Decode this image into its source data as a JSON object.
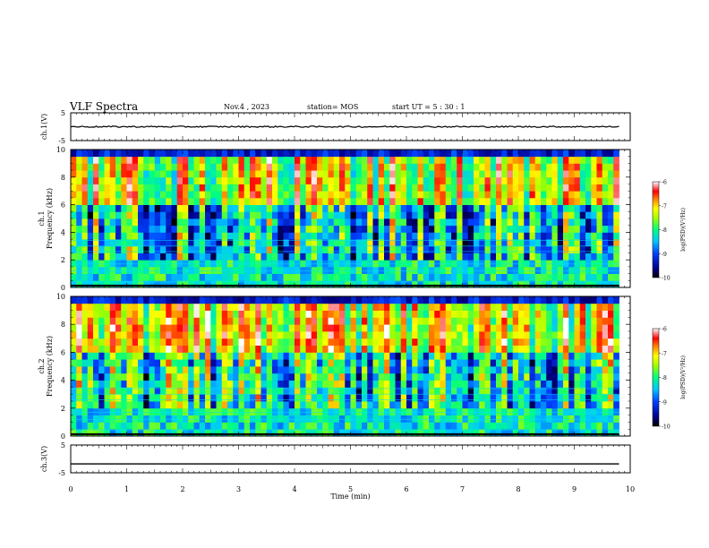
{
  "header": {
    "title": "VLF Spectra",
    "date": "Nov.4 , 2023",
    "station": "station= MOS",
    "start_ut": "start UT = 5 : 30 : 1"
  },
  "chart_data": [
    {
      "type": "line",
      "panel": "ch1-waveform",
      "ylabel": "ch.1(V)",
      "ylim": [
        -5,
        5
      ],
      "xlim": [
        0,
        10
      ],
      "yticks": [
        5,
        -5
      ],
      "series": [
        {
          "x": [
            0,
            9.8
          ],
          "values": [
            0,
            0
          ]
        }
      ]
    },
    {
      "type": "heatmap",
      "panel": "ch1-spectrogram",
      "ylabel": "ch.1 Frequency (kHz)",
      "ylim": [
        0,
        10
      ],
      "xlim": [
        0,
        10
      ],
      "yticks": [
        0,
        2,
        4,
        6,
        8,
        10
      ],
      "data_end_min": 9.8,
      "colorbar": {
        "label": "log(PSD)(V²/Hz)",
        "range": [
          -10,
          -6
        ],
        "ticks": [
          -6,
          -7,
          -8,
          -9,
          -10
        ]
      }
    },
    {
      "type": "heatmap",
      "panel": "ch2-spectrogram",
      "ylabel": "ch.2 Frequency (kHz)",
      "ylim": [
        0,
        10
      ],
      "xlim": [
        0,
        10
      ],
      "yticks": [
        0,
        2,
        4,
        6,
        8,
        10
      ],
      "data_end_min": 9.8,
      "colorbar": {
        "label": "log(PSD)(V²/Hz)",
        "range": [
          -10,
          -6
        ],
        "ticks": [
          -6,
          -7,
          -8,
          -9,
          -10
        ]
      }
    },
    {
      "type": "line",
      "panel": "ch3-waveform",
      "ylabel": "ch.3(V)",
      "ylim": [
        -5,
        5
      ],
      "xlim": [
        0,
        10
      ],
      "yticks": [
        5,
        -5
      ],
      "series": [
        {
          "x": [
            0,
            9.8
          ],
          "values": [
            -1.8,
            -1.8
          ]
        }
      ]
    }
  ],
  "xaxis": {
    "label": "Time (min)",
    "ticks": [
      "0",
      "1",
      "2",
      "3",
      "4",
      "5",
      "6",
      "7",
      "8",
      "9",
      "10"
    ]
  }
}
